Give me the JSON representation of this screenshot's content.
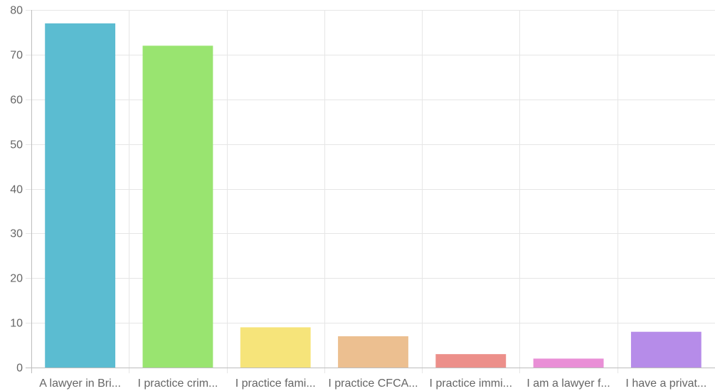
{
  "chart_data": {
    "type": "bar",
    "title": "",
    "xlabel": "",
    "ylabel": "",
    "categories": [
      "A lawyer in Bri...",
      "I practice crim...",
      "I practice fami...",
      "I practice CFCA...",
      "I practice immi...",
      "I am a lawyer f...",
      "I have a privat..."
    ],
    "values": [
      77,
      72,
      9,
      7,
      3,
      2,
      8
    ],
    "colors": [
      "#5bbcd1",
      "#99e470",
      "#f6e47a",
      "#ecbf90",
      "#ec8f8a",
      "#e98fd6",
      "#b68ce9"
    ],
    "ylim": [
      0,
      80
    ],
    "yticks": [
      0,
      10,
      20,
      30,
      40,
      50,
      60,
      70,
      80
    ],
    "grid": true,
    "legend": "none"
  }
}
